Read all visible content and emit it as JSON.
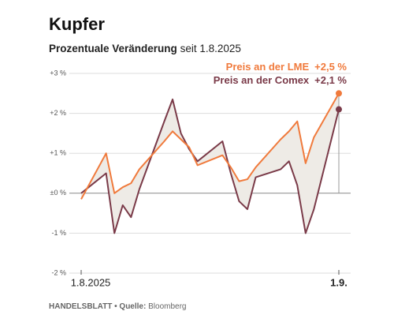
{
  "chart_data": {
    "type": "line",
    "title": "Kupfer",
    "subtitle_bold": "Prozentuale Veränderung",
    "subtitle": "seit 1.8.2025",
    "source_label": "HANDELSBLATT • Quelle:",
    "source": "Bloomberg",
    "x": [
      "2025-08-01",
      "2025-08-04",
      "2025-08-05",
      "2025-08-06",
      "2025-08-07",
      "2025-08-08",
      "2025-08-11",
      "2025-08-12",
      "2025-08-13",
      "2025-08-14",
      "2025-08-15",
      "2025-08-18",
      "2025-08-19",
      "2025-08-20",
      "2025-08-21",
      "2025-08-22",
      "2025-08-25",
      "2025-08-26",
      "2025-08-27",
      "2025-08-28",
      "2025-08-29",
      "2025-09-01"
    ],
    "xlim": [
      "2025-08-01",
      "2025-09-01"
    ],
    "xticks": [
      {
        "value": "2025-08-01",
        "label": "1.8.2025"
      },
      {
        "value": "2025-09-01",
        "label": "1.9."
      }
    ],
    "ylim": [
      -2,
      3
    ],
    "yticks": [
      {
        "value": 3,
        "label": "+3 %"
      },
      {
        "value": 2,
        "label": "+2 %"
      },
      {
        "value": 1,
        "label": "+1 %"
      },
      {
        "value": 0,
        "label": "±0 %"
      },
      {
        "value": -1,
        "label": "-1 %"
      },
      {
        "value": -2,
        "label": "-2 %"
      }
    ],
    "grid": true,
    "legend": "top-right",
    "series": [
      {
        "name": "Preis an der LME",
        "color": "#f07a3c",
        "values": [
          -0.15,
          1.0,
          0.0,
          0.15,
          0.25,
          0.6,
          1.3,
          1.55,
          1.35,
          1.15,
          0.7,
          0.95,
          0.65,
          0.3,
          0.35,
          0.65,
          1.35,
          1.55,
          1.8,
          0.75,
          1.4,
          2.5
        ],
        "value_labels": [
          null,
          null,
          null,
          null,
          null,
          null,
          null,
          null,
          null,
          null,
          null,
          null,
          null,
          null,
          null,
          null,
          null,
          null,
          null,
          null,
          null,
          "+2,5 %"
        ]
      },
      {
        "name": "Preis an der Comex",
        "color": "#7a3a48",
        "values": [
          0.0,
          0.5,
          -1.0,
          -0.3,
          -0.6,
          0.1,
          1.8,
          2.35,
          1.5,
          1.1,
          0.8,
          1.3,
          0.5,
          -0.2,
          -0.4,
          0.4,
          0.6,
          0.8,
          0.2,
          -1.0,
          -0.4,
          2.1
        ],
        "value_labels": [
          null,
          null,
          null,
          null,
          null,
          null,
          null,
          null,
          null,
          null,
          null,
          null,
          null,
          null,
          null,
          null,
          null,
          null,
          null,
          null,
          null,
          "+2,1 %"
        ]
      }
    ]
  }
}
